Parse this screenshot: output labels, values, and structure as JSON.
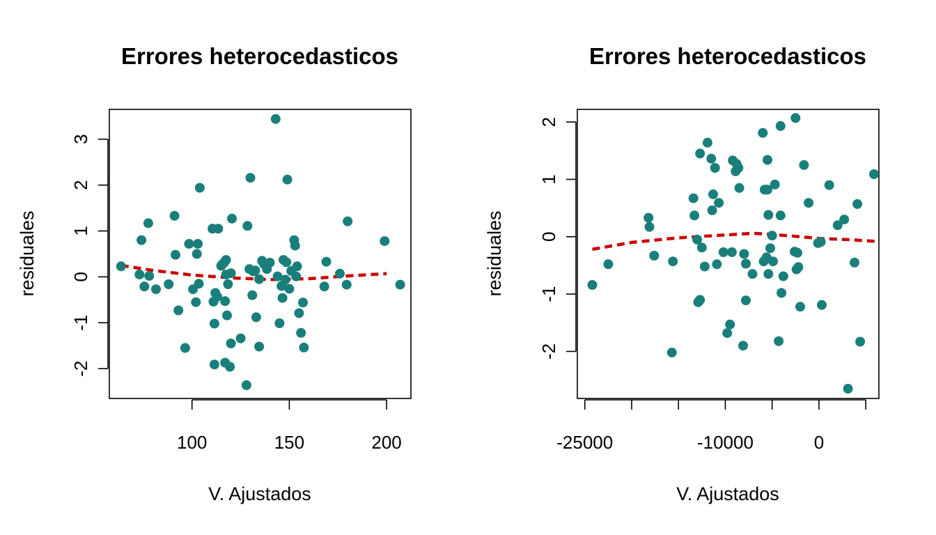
{
  "chart_data": [
    {
      "type": "scatter",
      "title": "Errores heterocedasticos",
      "xlabel": "V. Ajustados",
      "ylabel": "residuales",
      "xlim": [
        57.5,
        212.5
      ],
      "ylim": [
        -2.65,
        3.65
      ],
      "x_ticks": [
        100,
        150,
        200
      ],
      "x_tick_labels": [
        "100",
        "150",
        "200"
      ],
      "y_ticks": [
        -2,
        -1,
        0,
        1,
        2,
        3
      ],
      "y_tick_labels": [
        "-2",
        "-1",
        "0",
        "1",
        "2",
        "3"
      ],
      "grid": false,
      "point_color": "#1a7f7a",
      "trend_color": "#cc0000",
      "points": [
        [
          63.5,
          0.23
        ],
        [
          73,
          0.05
        ],
        [
          74,
          0.8
        ],
        [
          75.5,
          -0.21
        ],
        [
          77.5,
          1.17
        ],
        [
          78,
          0.02
        ],
        [
          81.5,
          -0.27
        ],
        [
          88,
          -0.16
        ],
        [
          91,
          1.33
        ],
        [
          91.5,
          0.48
        ],
        [
          93,
          -0.73
        ],
        [
          96.5,
          -1.55
        ],
        [
          98.5,
          0.72
        ],
        [
          100.5,
          -0.27
        ],
        [
          102,
          -0.55
        ],
        [
          102.5,
          0.5
        ],
        [
          103,
          0.72
        ],
        [
          103.5,
          -0.15
        ],
        [
          104,
          1.94
        ],
        [
          110.5,
          1.05
        ],
        [
          111,
          -0.54
        ],
        [
          111.5,
          -1.02
        ],
        [
          111.5,
          -1.91
        ],
        [
          112,
          -0.35
        ],
        [
          113,
          -0.43
        ],
        [
          113.5,
          1.05
        ],
        [
          115,
          0.24
        ],
        [
          115.5,
          0.27
        ],
        [
          116.5,
          0.31
        ],
        [
          117,
          -1.87
        ],
        [
          117,
          -0.53
        ],
        [
          117.5,
          0.05
        ],
        [
          117.5,
          0.37
        ],
        [
          118,
          -0.84
        ],
        [
          118.5,
          -0.16
        ],
        [
          119.5,
          -1.96
        ],
        [
          120,
          0.08
        ],
        [
          120,
          -1.45
        ],
        [
          120.5,
          1.27
        ],
        [
          125,
          -1.34
        ],
        [
          128,
          -2.36
        ],
        [
          128.5,
          1.11
        ],
        [
          129.5,
          0.17
        ],
        [
          130,
          2.16
        ],
        [
          131,
          -0.4
        ],
        [
          131.5,
          0.12
        ],
        [
          132.5,
          0.14
        ],
        [
          133,
          -0.88
        ],
        [
          134.5,
          -0.05
        ],
        [
          134.5,
          -1.52
        ],
        [
          136,
          0.35
        ],
        [
          137,
          0.28
        ],
        [
          138.5,
          0.17
        ],
        [
          140,
          0.31
        ],
        [
          143,
          3.44
        ],
        [
          144,
          0.01
        ],
        [
          145,
          -1.01
        ],
        [
          146,
          -0.2
        ],
        [
          146.5,
          -0.46
        ],
        [
          147,
          0.37
        ],
        [
          148,
          -0.06
        ],
        [
          148.5,
          0.32
        ],
        [
          149,
          2.12
        ],
        [
          150,
          -0.26
        ],
        [
          151,
          0.13
        ],
        [
          152.5,
          0.8
        ],
        [
          153,
          0.68
        ],
        [
          153.5,
          0.01
        ],
        [
          154,
          0.23
        ],
        [
          155,
          -0.79
        ],
        [
          156,
          -1.22
        ],
        [
          157,
          -0.56
        ],
        [
          157.5,
          -1.54
        ],
        [
          168,
          -0.21
        ],
        [
          169,
          0.33
        ],
        [
          176,
          0.07
        ],
        [
          179.5,
          -0.17
        ],
        [
          180,
          1.21
        ],
        [
          199,
          0.78
        ],
        [
          207,
          -0.17
        ]
      ],
      "trend": [
        [
          63.5,
          0.25
        ],
        [
          80,
          0.14
        ],
        [
          100,
          0.04
        ],
        [
          120,
          -0.02
        ],
        [
          140,
          -0.06
        ],
        [
          160,
          -0.04
        ],
        [
          180,
          0.02
        ],
        [
          200,
          0.07
        ]
      ]
    },
    {
      "type": "scatter",
      "title": "Errores heterocedasticos",
      "xlabel": "V. Ajustados",
      "ylabel": "residuales",
      "xlim": [
        -25800,
        6400
      ],
      "ylim": [
        -2.82,
        2.22
      ],
      "x_ticks": [
        -25000,
        -20000,
        -15000,
        -10000,
        -5000,
        0,
        5000
      ],
      "x_tick_labels": [
        "-25000",
        "",
        "",
        "-10000",
        "",
        "0",
        ""
      ],
      "y_ticks": [
        -2,
        -1,
        0,
        1,
        2
      ],
      "y_tick_labels": [
        "-2",
        "-1",
        "0",
        "1",
        "2"
      ],
      "grid": false,
      "point_color": "#1a7f7a",
      "trend_color": "#cc0000",
      "points": [
        [
          -24200,
          -0.84
        ],
        [
          -22500,
          -0.48
        ],
        [
          -18200,
          0.33
        ],
        [
          -18100,
          0.17
        ],
        [
          -17600,
          -0.33
        ],
        [
          -15700,
          -2.02
        ],
        [
          -15600,
          -0.43
        ],
        [
          -13400,
          0.67
        ],
        [
          -13300,
          0.37
        ],
        [
          -13000,
          -0.05
        ],
        [
          -12900,
          -1.14
        ],
        [
          -12800,
          -1.12
        ],
        [
          -12700,
          -1.1
        ],
        [
          -12700,
          1.45
        ],
        [
          -12500,
          -0.19
        ],
        [
          -12200,
          -0.52
        ],
        [
          -11900,
          1.64
        ],
        [
          -11500,
          1.36
        ],
        [
          -11400,
          0.46
        ],
        [
          -11300,
          0.74
        ],
        [
          -11100,
          1.2
        ],
        [
          -10900,
          -0.48
        ],
        [
          -10700,
          0.59
        ],
        [
          -10200,
          -0.27
        ],
        [
          -9800,
          -1.68
        ],
        [
          -9500,
          -1.53
        ],
        [
          -9300,
          -0.27
        ],
        [
          -9200,
          1.33
        ],
        [
          -8900,
          1.14
        ],
        [
          -8800,
          1.27
        ],
        [
          -8600,
          1.2
        ],
        [
          -8500,
          0.85
        ],
        [
          -8100,
          -1.9
        ],
        [
          -8000,
          -0.3
        ],
        [
          -7800,
          -1.11
        ],
        [
          -7800,
          -0.47
        ],
        [
          -7100,
          -0.65
        ],
        [
          -6000,
          1.81
        ],
        [
          -5900,
          -0.43
        ],
        [
          -5800,
          0.82
        ],
        [
          -5600,
          -0.36
        ],
        [
          -5500,
          1.34
        ],
        [
          -5500,
          0.82
        ],
        [
          -5400,
          0.38
        ],
        [
          -5400,
          -0.65
        ],
        [
          -5200,
          -0.2
        ],
        [
          -5000,
          0.02
        ],
        [
          -4900,
          -0.43
        ],
        [
          -4700,
          0.91
        ],
        [
          -4300,
          -1.82
        ],
        [
          -4100,
          1.93
        ],
        [
          -4100,
          0.37
        ],
        [
          -4000,
          -0.98
        ],
        [
          -3800,
          -0.69
        ],
        [
          -2600,
          -0.26
        ],
        [
          -2500,
          2.07
        ],
        [
          -2400,
          -0.57
        ],
        [
          -2300,
          -0.28
        ],
        [
          -2200,
          -0.53
        ],
        [
          -2000,
          -1.22
        ],
        [
          -1600,
          1.25
        ],
        [
          -1100,
          0.59
        ],
        [
          -100,
          -0.11
        ],
        [
          200,
          -0.09
        ],
        [
          300,
          -1.19
        ],
        [
          1100,
          0.9
        ],
        [
          2000,
          0.2
        ],
        [
          2700,
          0.3
        ],
        [
          3100,
          -2.65
        ],
        [
          3800,
          -0.45
        ],
        [
          4100,
          0.57
        ],
        [
          4400,
          -1.83
        ],
        [
          7900,
          1.09
        ]
      ],
      "trend": [
        [
          -24200,
          -0.22
        ],
        [
          -20000,
          -0.1
        ],
        [
          -15000,
          -0.02
        ],
        [
          -10000,
          0.03
        ],
        [
          -7000,
          0.06
        ],
        [
          -5000,
          0.04
        ],
        [
          -2000,
          0.0
        ],
        [
          0,
          -0.03
        ],
        [
          3000,
          -0.05
        ],
        [
          6000,
          -0.08
        ]
      ]
    }
  ]
}
